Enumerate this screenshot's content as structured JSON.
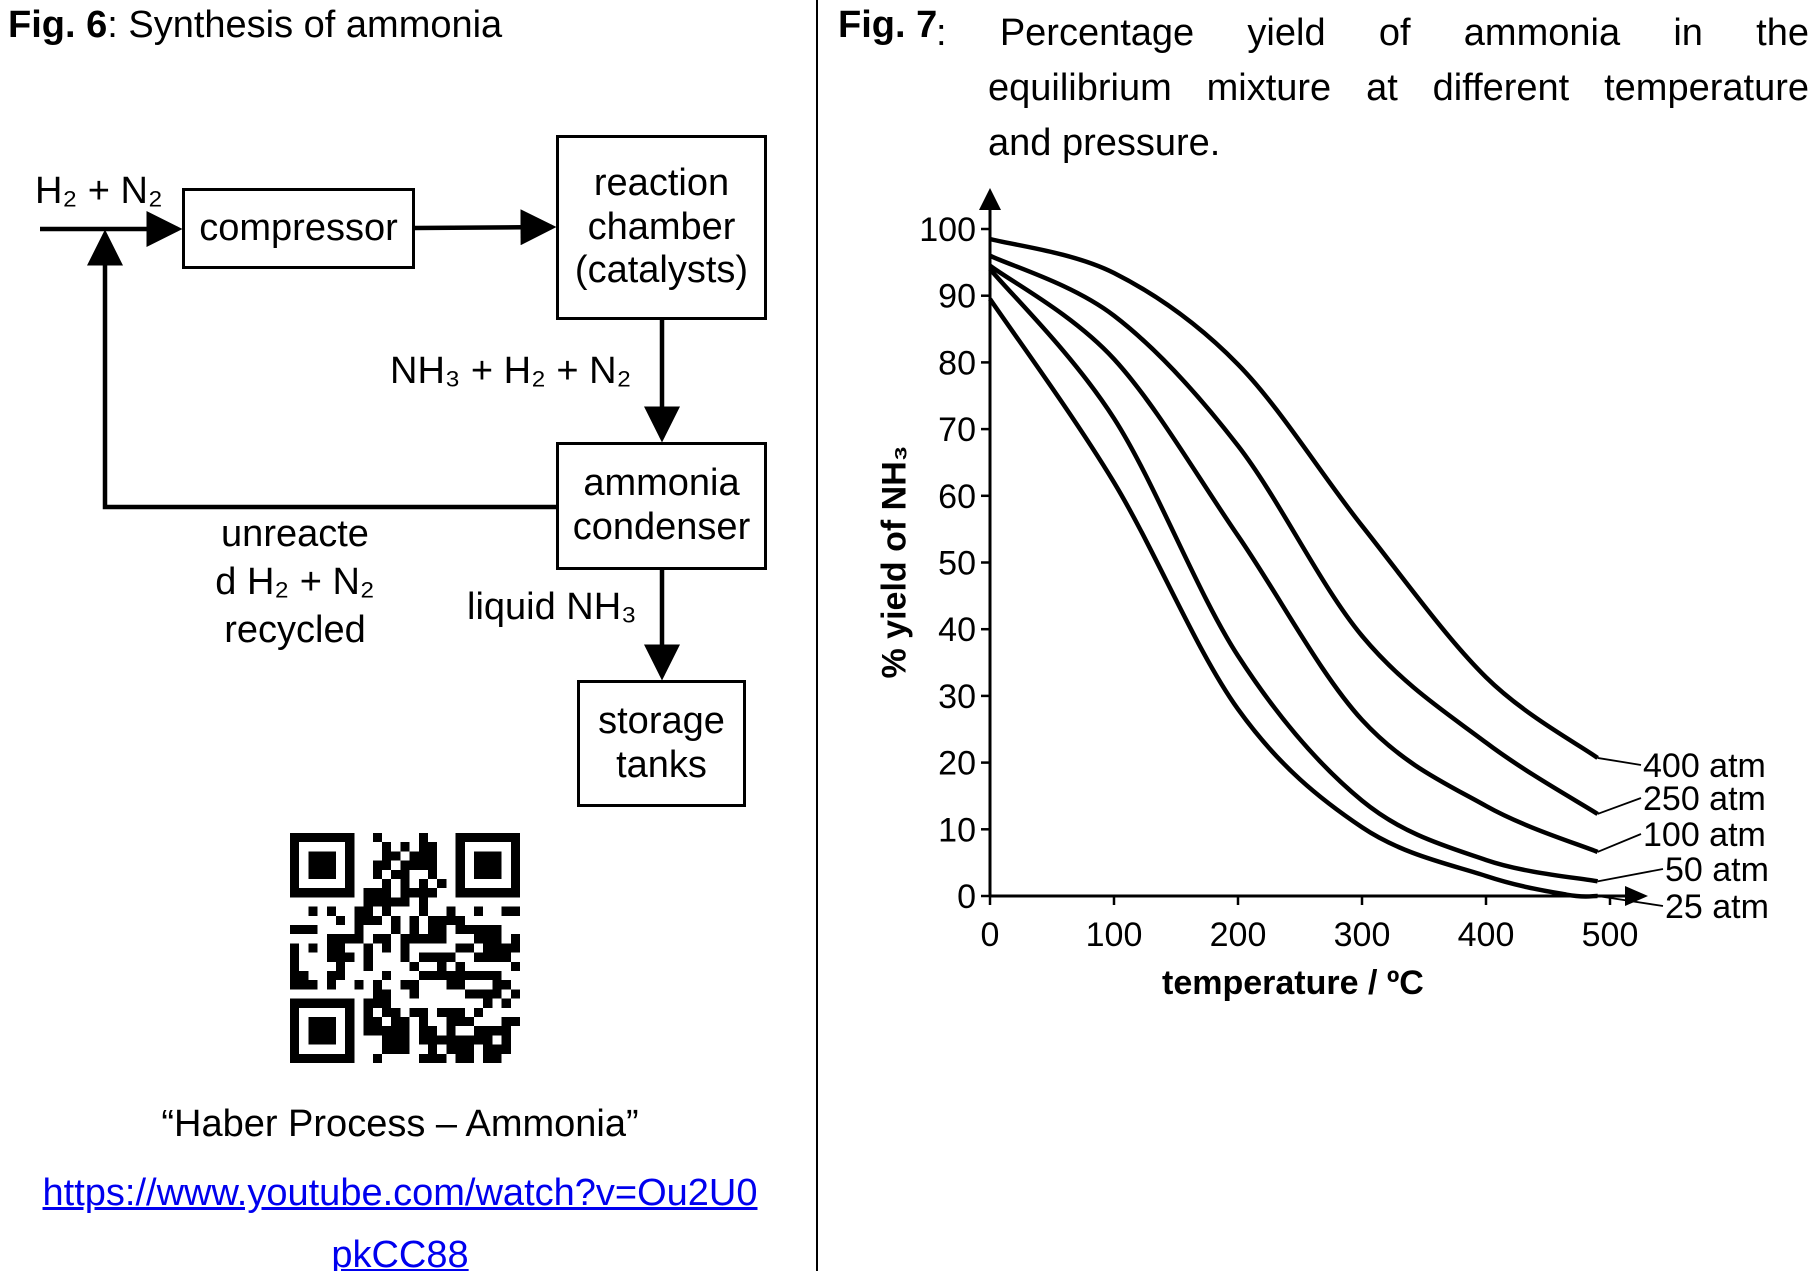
{
  "fig6": {
    "label": "Fig. 6",
    "caption": ": Synthesis of ammonia",
    "input_label": "H₂ + N₂",
    "boxes": {
      "compressor": "compressor",
      "reaction_chamber": [
        "reaction",
        "chamber",
        "(catalysts)"
      ],
      "condenser": [
        "ammonia",
        "condenser"
      ],
      "storage": [
        "storage",
        "tanks"
      ]
    },
    "flow_labels": {
      "reactor_out": "NH₃ + H₂ + N₂",
      "recycle": [
        "unreacte",
        "d H₂ + N₂",
        "recycled"
      ],
      "liquid": "liquid NH₃"
    },
    "qr_code": "QR code",
    "video_title": "“Haber Process – Ammonia”",
    "video_link": [
      "https://www.youtube.com/watch?v=Ou2U0",
      "pkCC88"
    ]
  },
  "fig7": {
    "label": "Fig. 7",
    "caption_lines": [
      ": Percentage yield of ammonia in the",
      "equilibrium mixture at different temperature",
      "and pressure."
    ]
  },
  "chart_data": {
    "type": "line",
    "xlabel": "temperature / ºC",
    "ylabel": "% yield of NH₃",
    "xlim": [
      0,
      500
    ],
    "ylim": [
      0,
      100
    ],
    "xticks": [
      "0",
      "100",
      "200",
      "300",
      "400",
      "500"
    ],
    "yticks": [
      "0",
      "10",
      "20",
      "30",
      "40",
      "50",
      "60",
      "70",
      "80",
      "90",
      "100"
    ],
    "grid": false,
    "legend": "curve labels at right end",
    "series": [
      {
        "name": "400 atm",
        "x": [
          0,
          100,
          200,
          300,
          400,
          490
        ],
        "y": [
          98.5,
          93.4,
          79.7,
          55.5,
          32.8,
          20.7
        ]
      },
      {
        "name": "250 atm",
        "x": [
          0,
          100,
          200,
          300,
          400,
          490
        ],
        "y": [
          96,
          87,
          67.5,
          39,
          23,
          12.3
        ]
      },
      {
        "name": "100 atm",
        "x": [
          0,
          100,
          200,
          300,
          400,
          490
        ],
        "y": [
          94.5,
          80.5,
          54,
          26.4,
          13.5,
          6.6
        ]
      },
      {
        "name": "50 atm",
        "x": [
          0,
          100,
          200,
          300,
          400,
          490
        ],
        "y": [
          94,
          71.6,
          36,
          14.3,
          5.4,
          2.2
        ]
      },
      {
        "name": "25 atm",
        "x": [
          0,
          100,
          200,
          300,
          400,
          465
        ],
        "y": [
          89.5,
          62,
          28,
          10.3,
          3,
          0.2
        ]
      }
    ]
  }
}
